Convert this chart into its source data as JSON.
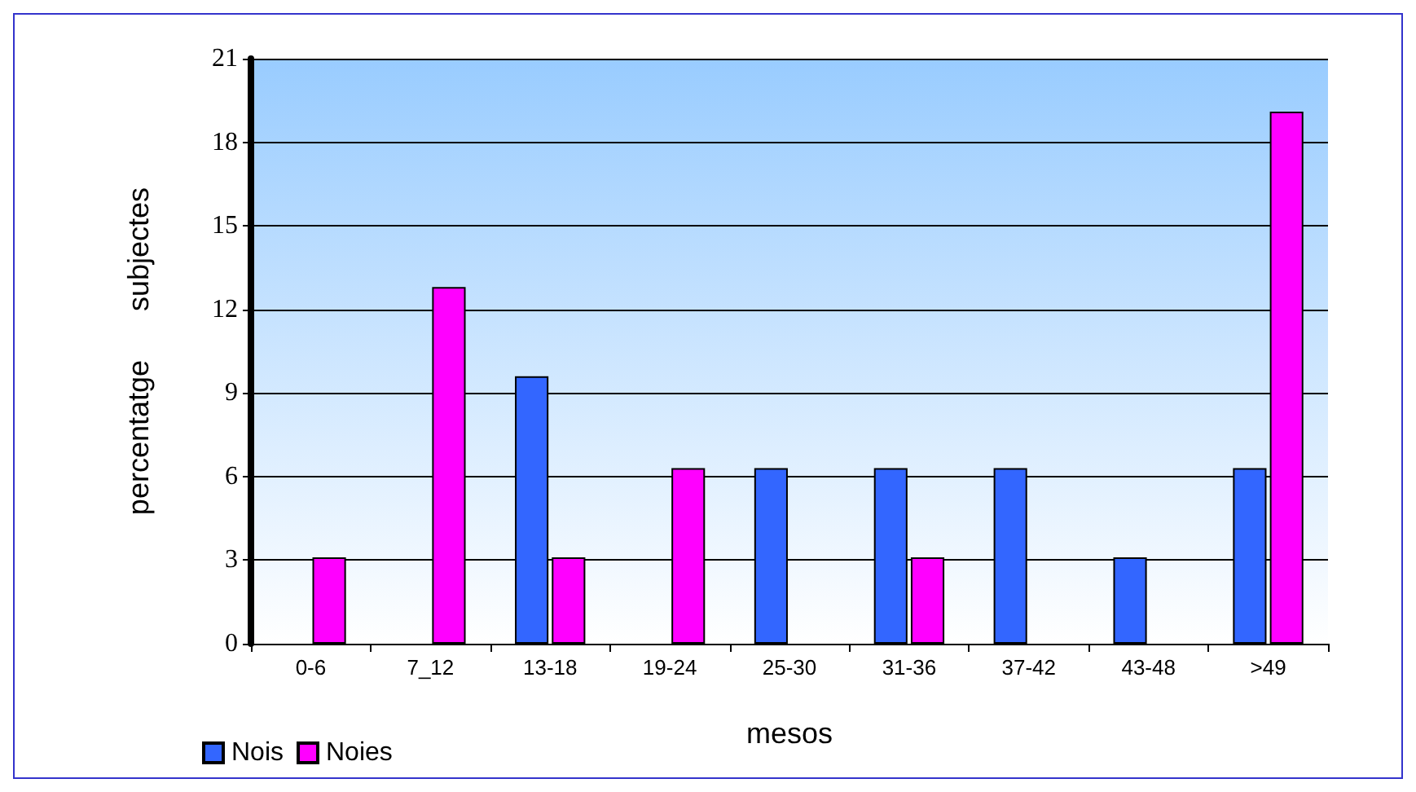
{
  "chart_data": {
    "type": "bar",
    "xlabel": "mesos",
    "ylabel": "percentatge      subjectes",
    "categories": [
      "0-6",
      "7_12",
      "13-18",
      "19-24",
      "25-30",
      "31-36",
      "37-42",
      "43-48",
      ">49"
    ],
    "series": [
      {
        "name": "Nois",
        "color": "#3366ff",
        "values": [
          0,
          0,
          9.6,
          0,
          6.3,
          6.3,
          6.3,
          3.1,
          6.3
        ]
      },
      {
        "name": "Noies",
        "color": "#ff00ff",
        "values": [
          3.1,
          12.8,
          3.1,
          6.3,
          0,
          3.1,
          0,
          0,
          19.1
        ]
      }
    ],
    "ylim": [
      0,
      21
    ],
    "yticks": [
      0,
      3,
      6,
      9,
      12,
      15,
      18,
      21
    ],
    "grid": "y",
    "legend": "bottom left"
  }
}
